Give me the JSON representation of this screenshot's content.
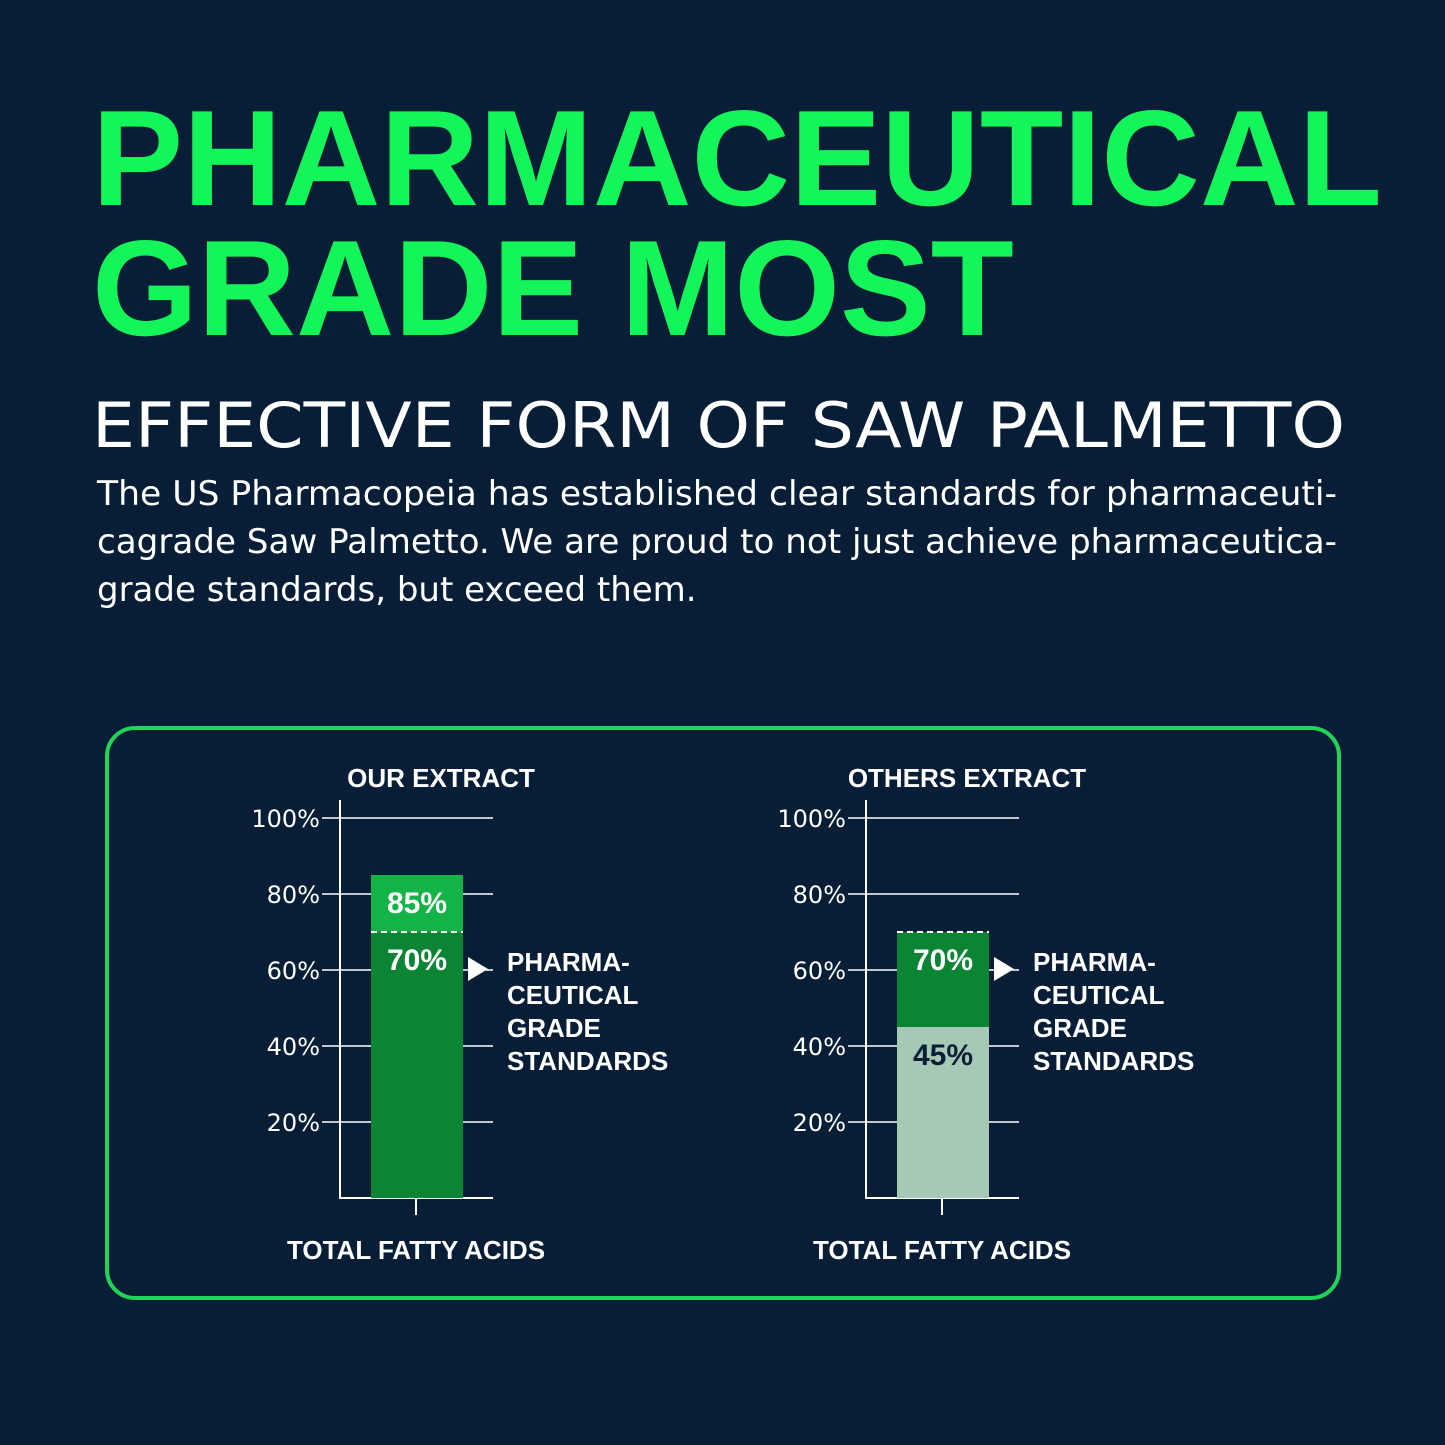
{
  "header": {
    "title_lines": [
      "PHARMACEUTICAL",
      "GRADE MOST"
    ],
    "subtitle": "EFFECTIVE FORM OF SAW PALMETTO",
    "paragraph_lines": [
      "The US Pharmacopeia has established clear standards for pharmaceuti-",
      "cagrade Saw Palmetto. We are proud to not just achieve pharmaceutica-",
      "grade standards, but exceed them."
    ]
  },
  "chart_data": [
    {
      "type": "bar",
      "title": "OUR EXTRACT",
      "categories": [
        "TOTAL FATTY ACIDS"
      ],
      "series": [
        {
          "color": "#14b347",
          "label_color": "#ffffff",
          "values": [
            85
          ],
          "value_labels": [
            "85%"
          ]
        },
        {
          "color": "#0b8434",
          "label_color": "#ffffff",
          "values": [
            70
          ],
          "value_labels": [
            "70%"
          ]
        }
      ],
      "reference_line": 70,
      "annotation_lines": [
        "PHARMA-",
        "CEUTICAL",
        "GRADE",
        "STANDARDS"
      ],
      "ylim": [
        0,
        100
      ],
      "yticks": [
        {
          "value": 20,
          "label": "20%"
        },
        {
          "value": 40,
          "label": "40%"
        },
        {
          "value": 60,
          "label": "60%"
        },
        {
          "value": 80,
          "label": "80%"
        },
        {
          "value": 100,
          "label": "100%"
        }
      ],
      "grid": true
    },
    {
      "type": "bar",
      "title": "OTHERS EXTRACT",
      "categories": [
        "TOTAL FATTY ACIDS"
      ],
      "series": [
        {
          "color": "#0b8434",
          "label_color": "#ffffff",
          "values": [
            70
          ],
          "value_labels": [
            "70%"
          ]
        },
        {
          "color": "#a6c9b6",
          "label_color": "#0a1f36",
          "values": [
            45
          ],
          "value_labels": [
            "45%"
          ]
        }
      ],
      "reference_line": 70,
      "annotation_lines": [
        "PHARMA-",
        "CEUTICAL",
        "GRADE",
        "STANDARDS"
      ],
      "ylim": [
        0,
        100
      ],
      "yticks": [
        {
          "value": 20,
          "label": "20%"
        },
        {
          "value": 40,
          "label": "40%"
        },
        {
          "value": 60,
          "label": "60%"
        },
        {
          "value": 80,
          "label": "80%"
        },
        {
          "value": 100,
          "label": "100%"
        }
      ],
      "grid": true
    }
  ]
}
